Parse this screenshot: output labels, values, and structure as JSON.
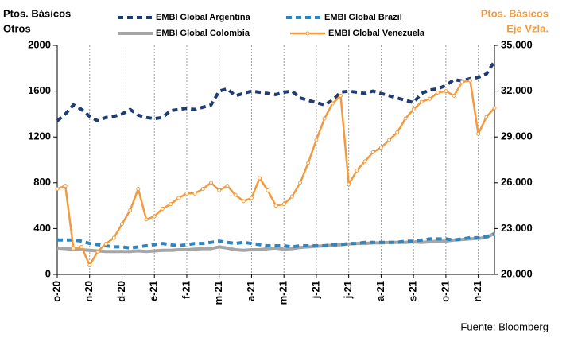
{
  "chart_data": {
    "type": "line",
    "y_label": [
      "Ptos. Básicos",
      "Otros"
    ],
    "y2_label": [
      "Ptos. Básicos",
      "Eje Vzla."
    ],
    "source": "Fuente: Bloomberg",
    "categories": [
      "o-20",
      null,
      null,
      null,
      "n-20",
      null,
      null,
      null,
      "d-20",
      null,
      null,
      null,
      "e-21",
      null,
      null,
      null,
      "f-21",
      null,
      null,
      null,
      "m-21",
      null,
      null,
      null,
      "a-21",
      null,
      null,
      null,
      "m-21",
      null,
      null,
      null,
      "j-21",
      null,
      null,
      null,
      "j-21",
      null,
      null,
      null,
      "a-21",
      null,
      null,
      null,
      "s-21",
      null,
      null,
      null,
      "o-21",
      null,
      null,
      null,
      "n-21",
      null,
      null
    ],
    "ylim": [
      0,
      2000
    ],
    "yticks": [
      0,
      400,
      800,
      1200,
      1600,
      2000
    ],
    "y2lim": [
      20000,
      35000
    ],
    "y2ticks": [
      {
        "value": 20000,
        "label": "20.000"
      },
      {
        "value": 23000,
        "label": "23.000"
      },
      {
        "value": 26000,
        "label": "26.000"
      },
      {
        "value": 29000,
        "label": "29.000"
      },
      {
        "value": 32000,
        "label": "32.000"
      },
      {
        "value": 35000,
        "label": "35.000"
      }
    ],
    "y2_color": "#f59a3c",
    "grid": "x",
    "series": [
      {
        "name": "EMBI Global Argentina",
        "color": "#1f3c73",
        "dash": true,
        "values": [
          1340,
          1400,
          1480,
          1440,
          1380,
          1340,
          1370,
          1380,
          1400,
          1440,
          1390,
          1370,
          1360,
          1370,
          1430,
          1440,
          1450,
          1440,
          1460,
          1480,
          1600,
          1620,
          1560,
          1580,
          1600,
          1590,
          1580,
          1570,
          1590,
          1600,
          1540,
          1520,
          1500,
          1480,
          1520,
          1590,
          1600,
          1590,
          1580,
          1600,
          1580,
          1560,
          1540,
          1520,
          1500,
          1580,
          1610,
          1620,
          1650,
          1700,
          1690,
          1710,
          1720,
          1750,
          1860
        ]
      },
      {
        "name": "EMBI Global Brazil",
        "color": "#2e86c1",
        "dash": true,
        "values": [
          300,
          300,
          300,
          290,
          270,
          260,
          250,
          240,
          240,
          230,
          240,
          250,
          260,
          270,
          260,
          250,
          260,
          270,
          270,
          280,
          290,
          280,
          270,
          280,
          270,
          260,
          250,
          250,
          250,
          240,
          250,
          250,
          250,
          250,
          260,
          260,
          270,
          270,
          280,
          280,
          280,
          280,
          280,
          290,
          290,
          300,
          310,
          310,
          310,
          300,
          310,
          320,
          320,
          330,
          350
        ]
      },
      {
        "name": "EMBI Global Colombia",
        "color": "#a6a6a6",
        "dash": false,
        "values": [
          230,
          225,
          220,
          215,
          210,
          205,
          200,
          200,
          200,
          200,
          205,
          200,
          205,
          210,
          210,
          215,
          215,
          220,
          225,
          225,
          240,
          230,
          215,
          210,
          215,
          215,
          225,
          230,
          220,
          225,
          235,
          240,
          245,
          250,
          255,
          260,
          265,
          270,
          270,
          275,
          275,
          280,
          280,
          280,
          285,
          280,
          285,
          290,
          290,
          300,
          305,
          310,
          315,
          320,
          360
        ]
      },
      {
        "name": "EMBI Global Venezuela",
        "color": "#f59a3c",
        "dash": false,
        "axis": "y2",
        "values": [
          25600,
          25800,
          21700,
          21800,
          20600,
          21500,
          22000,
          22400,
          23300,
          24200,
          25600,
          23600,
          23800,
          24300,
          24600,
          25000,
          25300,
          25300,
          25600,
          26000,
          25500,
          25800,
          25200,
          24800,
          25000,
          26300,
          25500,
          24500,
          24600,
          25100,
          26000,
          27300,
          28800,
          30200,
          31200,
          31700,
          25900,
          26800,
          27400,
          28000,
          28300,
          28800,
          29300,
          30200,
          30800,
          31300,
          31500,
          31900,
          32000,
          31700,
          32600,
          32700,
          29200,
          30300,
          30900
        ]
      }
    ]
  }
}
